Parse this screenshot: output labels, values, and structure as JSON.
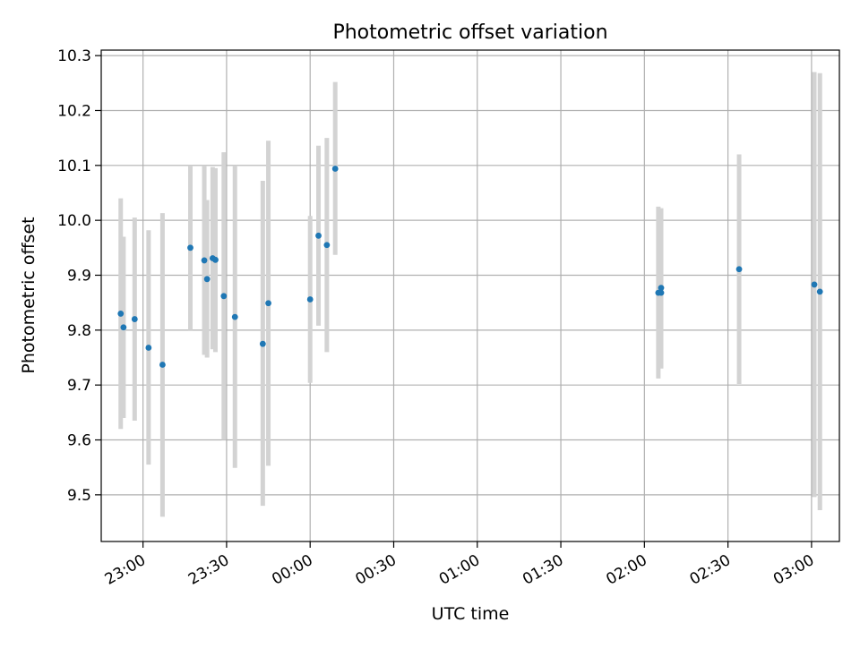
{
  "chart_data": {
    "type": "scatter",
    "title": "Photometric offset variation",
    "xlabel": "UTC time",
    "ylabel": "Photometric offset",
    "xlim": [
      "22:45",
      "03:10"
    ],
    "ylim": [
      9.415,
      10.31
    ],
    "x_ticks": [
      "23:00",
      "23:30",
      "00:00",
      "00:30",
      "01:00",
      "01:30",
      "02:00",
      "02:30",
      "03:00"
    ],
    "y_ticks": [
      9.5,
      9.6,
      9.7,
      9.8,
      9.9,
      10.0,
      10.1,
      10.2,
      10.3
    ],
    "grid": true,
    "colors": {
      "points": "#1f77b4",
      "errorbars": "#d3d3d3",
      "grid": "#b0b0b0"
    },
    "series": [
      {
        "points": [
          {
            "time": "22:52",
            "y": 9.83,
            "low": 9.62,
            "high": 10.04
          },
          {
            "time": "22:53",
            "y": 9.805,
            "low": 9.64,
            "high": 9.97
          },
          {
            "time": "22:57",
            "y": 9.82,
            "low": 9.635,
            "high": 10.005
          },
          {
            "time": "23:02",
            "y": 9.768,
            "low": 9.555,
            "high": 9.982
          },
          {
            "time": "23:07",
            "y": 9.737,
            "low": 9.46,
            "high": 10.013
          },
          {
            "time": "23:17",
            "y": 9.95,
            "low": 9.8,
            "high": 10.1
          },
          {
            "time": "23:22",
            "y": 9.927,
            "low": 9.755,
            "high": 10.1
          },
          {
            "time": "23:23",
            "y": 9.893,
            "low": 9.75,
            "high": 10.037
          },
          {
            "time": "23:25",
            "y": 9.931,
            "low": 9.765,
            "high": 10.097
          },
          {
            "time": "23:26",
            "y": 9.928,
            "low": 9.76,
            "high": 10.095
          },
          {
            "time": "23:29",
            "y": 9.862,
            "low": 9.6,
            "high": 10.124
          },
          {
            "time": "23:33",
            "y": 9.824,
            "low": 9.549,
            "high": 10.1
          },
          {
            "time": "23:43",
            "y": 9.775,
            "low": 9.48,
            "high": 10.072
          },
          {
            "time": "23:45",
            "y": 9.849,
            "low": 9.553,
            "high": 10.145
          },
          {
            "time": "00:00",
            "y": 9.856,
            "low": 9.704,
            "high": 10.008
          },
          {
            "time": "00:03",
            "y": 9.972,
            "low": 9.808,
            "high": 10.136
          },
          {
            "time": "00:06",
            "y": 9.955,
            "low": 9.76,
            "high": 10.15
          },
          {
            "time": "00:09",
            "y": 10.094,
            "low": 9.937,
            "high": 10.252
          },
          {
            "time": "02:05",
            "y": 9.868,
            "low": 9.712,
            "high": 10.025
          },
          {
            "time": "02:06",
            "y": 9.877,
            "low": 9.732,
            "high": 10.022
          },
          {
            "time": "02:06",
            "y": 9.868,
            "low": 9.73,
            "high": 10.006
          },
          {
            "time": "02:34",
            "y": 9.911,
            "low": 9.702,
            "high": 10.12
          },
          {
            "time": "03:01",
            "y": 9.883,
            "low": 9.496,
            "high": 10.27
          },
          {
            "time": "03:03",
            "y": 9.87,
            "low": 9.472,
            "high": 10.268
          }
        ]
      }
    ]
  }
}
